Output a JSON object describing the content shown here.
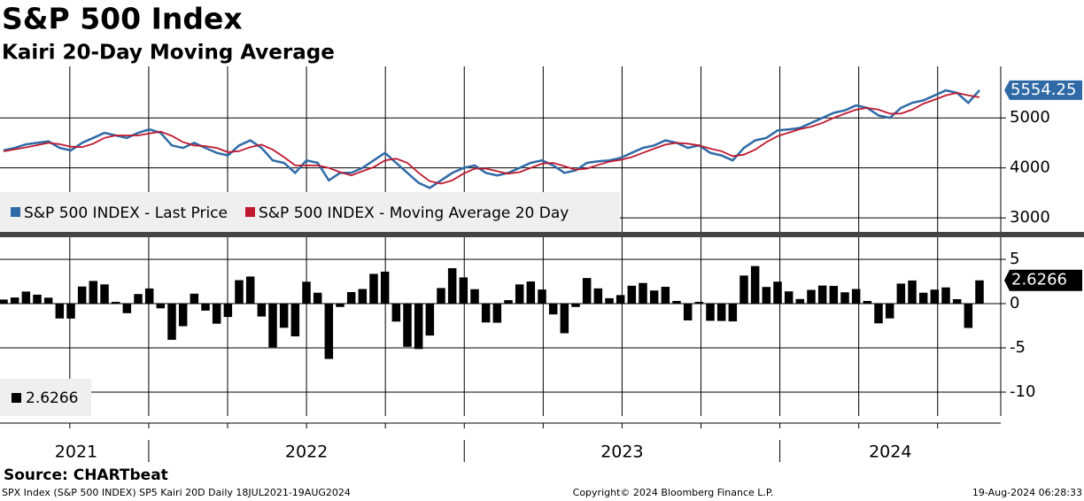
{
  "header": {
    "title": "S&P 500 Index",
    "subtitle": "Kairi 20-Day Moving Average"
  },
  "x_axis": {
    "xlim": [
      2021.54,
      2024.7
    ],
    "xticks": [
      2022,
      2023,
      2024
    ],
    "xgrid": [
      2021.75,
      2022,
      2022.25,
      2022.5,
      2022.75,
      2023,
      2023.25,
      2023.5,
      2023.75,
      2024,
      2024.25,
      2024.5
    ],
    "year_labels": [
      "2021",
      "2022",
      "2023",
      "2024"
    ],
    "year_starts": [
      2021,
      2022,
      2023,
      2024
    ]
  },
  "chart_data": [
    {
      "type": "line",
      "ylim": [
        2720,
        6030
      ],
      "yticks": [
        3000,
        4000,
        5000
      ],
      "grid": true,
      "series": [
        {
          "name": "S&P 500 INDEX - Last Price",
          "color": "#2f6aa6",
          "values": [
            4350,
            4400,
            4470,
            4500,
            4530,
            4400,
            4350,
            4500,
            4600,
            4700,
            4650,
            4600,
            4700,
            4770,
            4700,
            4450,
            4400,
            4500,
            4400,
            4300,
            4250,
            4450,
            4550,
            4400,
            4150,
            4100,
            3900,
            4150,
            4100,
            3750,
            3900,
            3900,
            4000,
            4150,
            4300,
            4100,
            3900,
            3700,
            3600,
            3750,
            3900,
            4000,
            4050,
            3900,
            3850,
            3900,
            4000,
            4100,
            4150,
            4050,
            3900,
            3950,
            4100,
            4130,
            4150,
            4200,
            4300,
            4400,
            4450,
            4550,
            4500,
            4400,
            4450,
            4300,
            4250,
            4150,
            4400,
            4550,
            4600,
            4750,
            4770,
            4800,
            4900,
            5000,
            5100,
            5150,
            5250,
            5200,
            5050,
            5000,
            5200,
            5300,
            5350,
            5450,
            5550,
            5500,
            5300,
            5554.25
          ]
        },
        {
          "name": "S&P 500 INDEX - Moving Average 20 Day",
          "color": "#c0182f",
          "values": [
            4330,
            4370,
            4410,
            4455,
            4500,
            4475,
            4425,
            4415,
            4485,
            4600,
            4650,
            4650,
            4650,
            4690,
            4725,
            4640,
            4515,
            4450,
            4435,
            4400,
            4315,
            4335,
            4415,
            4465,
            4365,
            4215,
            4050,
            4050,
            4050,
            4000,
            3915,
            3850,
            3935,
            4015,
            4150,
            4185,
            4100,
            3900,
            3735,
            3685,
            3750,
            3885,
            3985,
            3985,
            3935,
            3885,
            3915,
            4000,
            4085,
            4100,
            4035,
            3965,
            3985,
            4060,
            4125,
            4160,
            4215,
            4300,
            4385,
            4465,
            4500,
            4485,
            4450,
            4385,
            4335,
            4235,
            4265,
            4365,
            4515,
            4635,
            4705,
            4775,
            4825,
            4900,
            5000,
            5085,
            5165,
            5200,
            5165,
            5085,
            5085,
            5165,
            5285,
            5365,
            5450,
            5500,
            5450,
            5412.16
          ]
        }
      ]
    },
    {
      "type": "bar",
      "ylim": [
        -12.7,
        7.5
      ],
      "yticks": [
        -10,
        -5,
        0,
        5
      ],
      "grid": true,
      "color": "#000000",
      "values": [
        0.46,
        0.69,
        1.36,
        1.01,
        0.67,
        -1.68,
        -1.69,
        1.93,
        2.56,
        2.17,
        0.2,
        -1.08,
        1.08,
        1.71,
        -0.53,
        -4.09,
        -2.55,
        1.12,
        -0.79,
        -2.27,
        -1.51,
        2.65,
        3.06,
        -1.46,
        -4.93,
        -2.73,
        -3.7,
        2.47,
        1.23,
        -6.25,
        -0.38,
        1.3,
        1.65,
        3.36,
        3.61,
        -2.03,
        -4.88,
        -5.13,
        -3.61,
        1.76,
        4,
        2.96,
        1.63,
        -2.13,
        -2.16,
        0.39,
        2.17,
        2.5,
        1.59,
        -1.22,
        -3.35,
        -0.38,
        2.89,
        1.72,
        0.61,
        0.96,
        2.02,
        2.33,
        1.48,
        1.9,
        0.3,
        -1.9,
        0.2,
        -1.94,
        -1.96,
        -2.01,
        3.17,
        4.24,
        1.88,
        2.48,
        1.38,
        0.52,
        1.55,
        2.04,
        2,
        1.28,
        1.65,
        0.3,
        -2.23,
        -1.67,
        2.26,
        2.61,
        1.23,
        1.58,
        1.83,
        0.5,
        -2.75,
        2.6266
      ]
    }
  ],
  "footer": {
    "source": "Source: CHARTbeat",
    "description": "SPX Index (S&P 500 INDEX) SP5 Kairi 20D  Daily 18JUL2021-19AUG2024",
    "copyright": "Copyright© 2024 Bloomberg Finance L.P.",
    "timestamp": "19-Aug-2024 06:28:33"
  }
}
